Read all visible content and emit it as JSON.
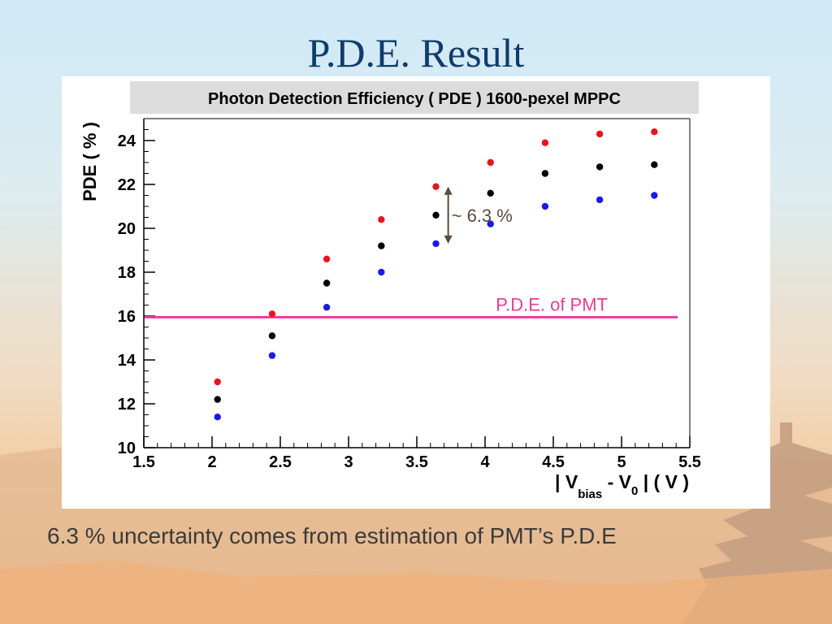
{
  "slide": {
    "title": "P.D.E. Result",
    "caption": "6.3 % uncertainty comes from estimation of PMT’s P.D.E"
  },
  "chart_data": {
    "type": "scatter",
    "title": "Photon Detection Efficiency ( PDE ) 1600-pexel MPPC",
    "ylabel": "PDE ( % )",
    "xlabel": {
      "prefix": "| V",
      "sub1": "bias",
      "mid": " - V",
      "sub2": "0",
      "suffix": " | ( V )"
    },
    "xlim": [
      1.5,
      5.5
    ],
    "ylim": [
      10,
      25
    ],
    "xticks": [
      1.5,
      2,
      2.5,
      3,
      3.5,
      4,
      4.5,
      5,
      5.5
    ],
    "xtick_labels": [
      "1.5",
      "2",
      "2.5",
      "3",
      "3.5",
      "4",
      "4.5",
      "5",
      "5.5"
    ],
    "yticks": [
      10,
      12,
      14,
      16,
      18,
      20,
      22,
      24
    ],
    "ytick_labels": [
      "10",
      "12",
      "14",
      "16",
      "18",
      "20",
      "22",
      "24"
    ],
    "series": [
      {
        "color": "#e8141e",
        "x": [
          2.04,
          2.44,
          2.84,
          3.24,
          3.64,
          4.04,
          4.44,
          4.84,
          5.24
        ],
        "y": [
          13.0,
          16.1,
          18.6,
          20.4,
          21.9,
          23.0,
          23.9,
          24.3,
          24.4
        ]
      },
      {
        "color": "#000000",
        "x": [
          2.04,
          2.44,
          2.84,
          3.24,
          3.64,
          4.04,
          4.44,
          4.84,
          5.24
        ],
        "y": [
          12.2,
          15.1,
          17.5,
          19.2,
          20.6,
          21.6,
          22.5,
          22.8,
          22.9
        ]
      },
      {
        "color": "#1a1ae6",
        "x": [
          2.04,
          2.44,
          2.84,
          3.24,
          3.64,
          4.04,
          4.44,
          4.84,
          5.24
        ],
        "y": [
          11.4,
          14.2,
          16.4,
          18.0,
          19.3,
          20.2,
          21.0,
          21.3,
          21.5
        ]
      }
    ],
    "reference_line": {
      "label": "P.D.E. of PMT",
      "y": 15.95,
      "color": "#e83c98"
    },
    "annotation": {
      "label": "~ 6.3 %",
      "x": 3.73,
      "y_from": 19.3,
      "y_to": 21.9,
      "color": "#5a4a3a"
    },
    "grid": false
  }
}
